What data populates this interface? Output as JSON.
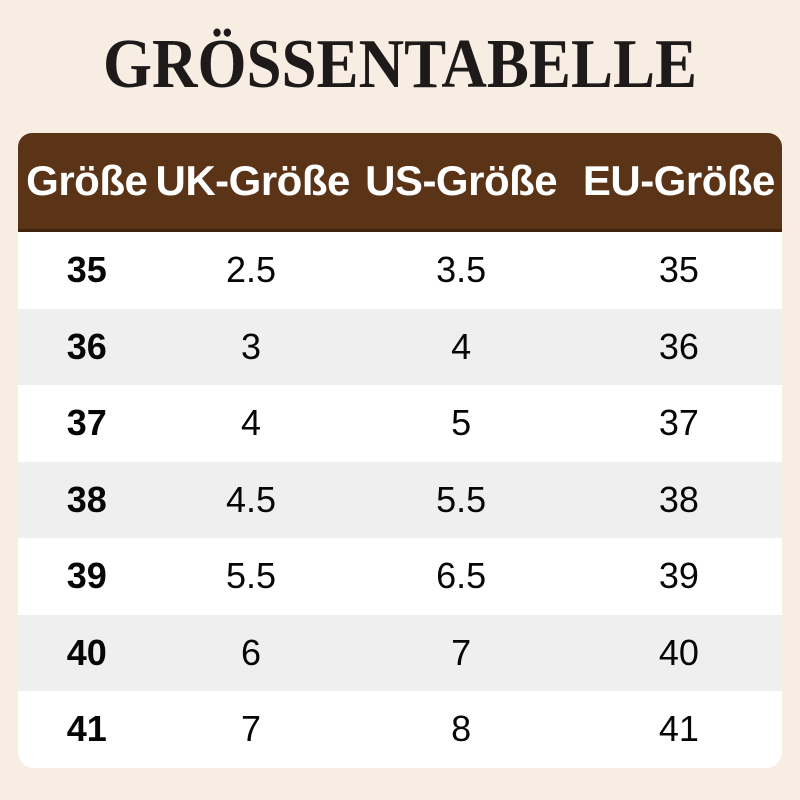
{
  "page": {
    "background_color": "#f7ede2"
  },
  "title": {
    "text": "GRÖSSENTABELLE",
    "color": "#1e1a19"
  },
  "table": {
    "header": {
      "background_color": "#5b3418",
      "border_bottom_color": "#40240f",
      "text_color": "#ffffff",
      "columns": [
        "Größe",
        "UK-Größe",
        "US-Größe",
        "EU-Größe"
      ]
    },
    "row_colors": {
      "odd": "#ffffff",
      "even": "#f0efef"
    },
    "rows": [
      [
        "35",
        "2.5",
        "3.5",
        "35"
      ],
      [
        "36",
        "3",
        "4",
        "36"
      ],
      [
        "37",
        "4",
        "5",
        "37"
      ],
      [
        "38",
        "4.5",
        "5.5",
        "38"
      ],
      [
        "39",
        "5.5",
        "6.5",
        "39"
      ],
      [
        "40",
        "6",
        "7",
        "40"
      ],
      [
        "41",
        "7",
        "8",
        "41"
      ]
    ]
  },
  "chart_data": {
    "type": "table",
    "title": "GRÖSSENTABELLE",
    "columns": [
      "Größe",
      "UK-Größe",
      "US-Größe",
      "EU-Größe"
    ],
    "rows": [
      [
        "35",
        "2.5",
        "3.5",
        "35"
      ],
      [
        "36",
        "3",
        "4",
        "36"
      ],
      [
        "37",
        "4",
        "5",
        "37"
      ],
      [
        "38",
        "4.5",
        "5.5",
        "38"
      ],
      [
        "39",
        "5.5",
        "6.5",
        "39"
      ],
      [
        "40",
        "6",
        "7",
        "40"
      ],
      [
        "41",
        "7",
        "8",
        "41"
      ]
    ],
    "layout_hints": {
      "header_style": "brown bar, white bold text, rounded top corners",
      "row_striping": "white / light gray alternating, rounded bottom corners",
      "background": "cream"
    }
  }
}
